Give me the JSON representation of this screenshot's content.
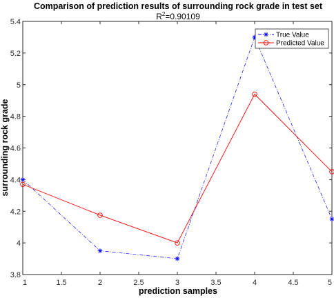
{
  "chart_data": {
    "type": "line",
    "title": "Comparison of prediction results of surrounding rock grade in test set",
    "subtitle_prefix": "R",
    "subtitle_sup": "2",
    "subtitle_value": "=0.90109",
    "xlabel": "prediction samples",
    "ylabel": "surrounding rock grade",
    "xlim": [
      1,
      5
    ],
    "ylim": [
      3.8,
      5.4
    ],
    "xticks": [
      "1",
      "1.5",
      "2",
      "2.5",
      "3",
      "3.5",
      "4",
      "4.5",
      "5"
    ],
    "yticks": [
      "3.8",
      "4",
      "4.2",
      "4.4",
      "4.6",
      "4.8",
      "5",
      "5.2",
      "5.4"
    ],
    "x": [
      1,
      2,
      3,
      4,
      5
    ],
    "grid": false,
    "legend_position": "top-right",
    "series": [
      {
        "name": "True Value",
        "values": [
          4.4,
          3.95,
          3.9,
          5.3,
          4.15
        ],
        "color": "#0000ff",
        "line_style": "dash-dot",
        "marker": "asterisk"
      },
      {
        "name": "Predicted Value",
        "values": [
          4.37,
          4.175,
          4.0,
          4.94,
          4.45
        ],
        "color": "#ff0000",
        "line_style": "solid",
        "marker": "circle"
      }
    ]
  }
}
